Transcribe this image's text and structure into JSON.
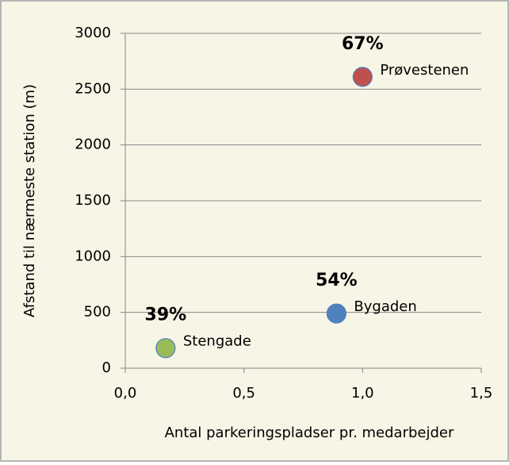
{
  "chart_data": {
    "type": "scatter",
    "xlabel": "Antal parkeringspladser pr. medarbejder",
    "ylabel": "Afstand til nærmeste station (m)",
    "xlim": [
      0,
      1.5
    ],
    "xticks": [
      {
        "value": 0,
        "label": "0,0"
      },
      {
        "value": 0.5,
        "label": "0,5"
      },
      {
        "value": 1,
        "label": "1,0"
      },
      {
        "value": 1.5,
        "label": "1,5"
      }
    ],
    "ylim": [
      0,
      3000
    ],
    "yticks": [
      0,
      500,
      1000,
      1500,
      2000,
      2500,
      3000
    ],
    "grid": true,
    "series": [
      {
        "name": "Stengade",
        "color": "#9bbb59",
        "x": [
          0.17
        ],
        "values": [
          180
        ],
        "annotation": "39%"
      },
      {
        "name": "Bygaden",
        "color": "#4f81bd",
        "x": [
          0.89
        ],
        "values": [
          490
        ],
        "annotation": "54%"
      },
      {
        "name": "Prøvestenen",
        "color": "#c0504d",
        "x": [
          1.0
        ],
        "values": [
          2610
        ],
        "annotation": "67%"
      }
    ]
  }
}
